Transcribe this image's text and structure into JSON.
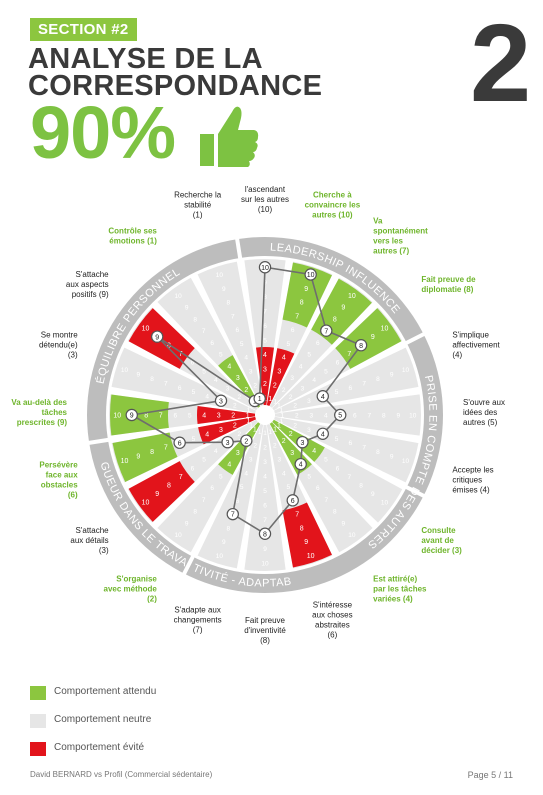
{
  "header": {
    "section": "SECTION #2",
    "title_line1": "ANALYSE DE LA",
    "title_line2": "CORRESPONDANCE",
    "score": "90%",
    "page_number": "2"
  },
  "colors": {
    "green": "#8cc63f",
    "gray": "#e6e6e6",
    "red": "#e2141b",
    "dark": "#3a3a3a",
    "ring": "#bdbdbd"
  },
  "legend": [
    {
      "label": "Comportement attendu",
      "color": "#8cc63f"
    },
    {
      "label": "Comportement neutre",
      "color": "#e6e6e6"
    },
    {
      "label": "Comportement évité",
      "color": "#e2141b"
    }
  ],
  "footer": {
    "left": "David BERNARD vs Profil (Commercial sédentaire)",
    "right": "Page 5 / 11"
  },
  "chart_data": {
    "type": "radar",
    "scale": [
      1,
      10
    ],
    "categories": [
      {
        "name": "LEADERSHIP INFLUENCE"
      },
      {
        "name": "PRISE EN COMPTE DES AUTRES"
      },
      {
        "name": "CRÉATIVITÉ - ADAPTABILITÉ"
      },
      {
        "name": "RIGUEUR DANS LE TRAVAIL"
      },
      {
        "name": "ÉQUILIBRE PERSONNEL"
      }
    ],
    "axes": [
      {
        "label": "Prend l'ascendant sur les autres",
        "score": 10,
        "zone": "neutral",
        "band": []
      },
      {
        "label": "Cherche à convaincre les autres",
        "score": 10,
        "zone": "expected",
        "band": [
          7,
          8,
          9,
          10
        ]
      },
      {
        "label": "Va spontanément vers les autres",
        "score": 7,
        "zone": "expected",
        "band": [
          7,
          8,
          9,
          10
        ]
      },
      {
        "label": "Fait preuve de diplomatie",
        "score": 8,
        "zone": "expected",
        "band": [
          7,
          8,
          9,
          10
        ]
      },
      {
        "label": "S'implique affectivement",
        "score": 4,
        "zone": "neutral",
        "band": []
      },
      {
        "label": "S'ouvre aux idées des autres",
        "score": 5,
        "zone": "neutral",
        "band": []
      },
      {
        "label": "Accepte les critiques émises",
        "score": 4,
        "zone": "neutral",
        "band": []
      },
      {
        "label": "Consulte avant de décider",
        "score": 3,
        "zone": "expected",
        "band": [
          1,
          2,
          3,
          4
        ]
      },
      {
        "label": "Est attiré(e) par les tâches variées",
        "score": 4,
        "zone": "expected",
        "band": [
          1,
          2,
          3,
          4
        ]
      },
      {
        "label": "S'intéresse aux choses abstraites",
        "score": 6,
        "zone": "avoided",
        "band": [
          7,
          8,
          9,
          10
        ]
      },
      {
        "label": "Fait preuve d'inventivité",
        "score": 8,
        "zone": "neutral",
        "band": []
      },
      {
        "label": "S'adapte aux changements",
        "score": 7,
        "zone": "neutral",
        "band": []
      },
      {
        "label": "S'organise avec méthode",
        "score": 2,
        "zone": "expected",
        "band": [
          1,
          2,
          3,
          4
        ]
      },
      {
        "label": "S'attache aux détails",
        "score": 3,
        "zone": "avoided",
        "band": [
          7,
          8,
          9,
          10
        ]
      },
      {
        "label": "Persévère face aux obstacles",
        "score": 6,
        "zone": "expected",
        "band": [
          7,
          8,
          9,
          10
        ]
      },
      {
        "label": "Va au-delà des tâches prescrites",
        "score": 9,
        "zone": "expected",
        "band": [
          7,
          8,
          9,
          10
        ]
      },
      {
        "label": "Se montre détendu(e)",
        "score": 3,
        "zone": "neutral",
        "band": []
      },
      {
        "label": "S'attache aux aspects positifs",
        "score": 9,
        "zone": "avoided",
        "band": [
          7,
          8,
          9,
          10
        ]
      },
      {
        "label": "Contrôle ses émotions",
        "score": 1,
        "zone": "expected",
        "band": [
          1,
          2,
          3,
          4
        ]
      },
      {
        "label": "Recherche la stabilité",
        "score": 1,
        "zone": "neutral",
        "band": []
      }
    ],
    "avoided_inner_axes": [
      {
        "axis": "Prend l'ascendant sur les autres",
        "band": [
          1,
          2,
          3,
          4
        ]
      },
      {
        "axis": "Cherche à convaincre les autres",
        "band": [
          1,
          2,
          3,
          4
        ]
      },
      {
        "axis": "Va au-delà des tâches prescrites",
        "band": [
          1,
          2,
          3,
          4
        ]
      },
      {
        "axis": "Persévère face aux obstacles",
        "band": [
          1,
          2,
          3,
          4
        ]
      }
    ]
  }
}
